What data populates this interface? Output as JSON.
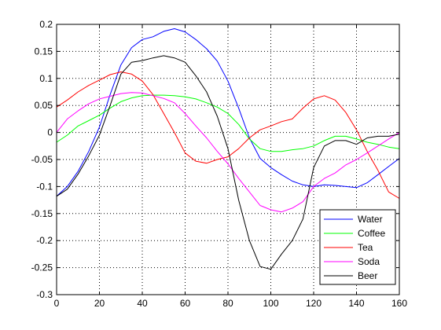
{
  "chart_data": {
    "type": "line",
    "title": "",
    "xlabel": "",
    "ylabel": "",
    "xlim": [
      0,
      160
    ],
    "ylim": [
      -0.3,
      0.2
    ],
    "xticks": [
      0,
      20,
      40,
      60,
      80,
      100,
      120,
      140,
      160
    ],
    "xtick_labels": [
      "0",
      "20",
      "40",
      "60",
      "80",
      "100",
      "120",
      "140",
      "160"
    ],
    "yticks": [
      -0.3,
      -0.25,
      -0.2,
      -0.15,
      -0.1,
      -0.05,
      0,
      0.05,
      0.1,
      0.15,
      0.2
    ],
    "ytick_labels": [
      "-0.3",
      "-0.25",
      "-0.2",
      "-0.15",
      "-0.1",
      "-0.05",
      "0",
      "0.05",
      "0.1",
      "0.15",
      "0.2"
    ],
    "grid": true,
    "legend_position": "bottom-right",
    "series": [
      {
        "name": "Water",
        "color": "#0000ff",
        "x": [
          0,
          5,
          10,
          15,
          20,
          25,
          30,
          35,
          40,
          45,
          50,
          55,
          60,
          65,
          70,
          75,
          80,
          85,
          90,
          95,
          100,
          105,
          110,
          115,
          120,
          125,
          130,
          135,
          140,
          145,
          150,
          155,
          160
        ],
        "y": [
          -0.118,
          -0.1,
          -0.072,
          -0.035,
          0.01,
          0.07,
          0.125,
          0.157,
          0.172,
          0.177,
          0.187,
          0.192,
          0.186,
          0.172,
          0.155,
          0.132,
          0.095,
          0.045,
          -0.01,
          -0.048,
          -0.065,
          -0.078,
          -0.09,
          -0.097,
          -0.1,
          -0.097,
          -0.098,
          -0.1,
          -0.102,
          -0.093,
          -0.078,
          -0.063,
          -0.048
        ]
      },
      {
        "name": "Coffee",
        "color": "#00ff00",
        "x": [
          0,
          5,
          10,
          15,
          20,
          25,
          30,
          35,
          40,
          45,
          50,
          55,
          60,
          65,
          70,
          75,
          80,
          85,
          90,
          95,
          100,
          105,
          110,
          115,
          120,
          125,
          130,
          135,
          140,
          145,
          150,
          155,
          160
        ],
        "y": [
          -0.018,
          -0.005,
          0.012,
          0.022,
          0.032,
          0.045,
          0.057,
          0.064,
          0.068,
          0.069,
          0.069,
          0.068,
          0.066,
          0.062,
          0.055,
          0.047,
          0.035,
          0.015,
          -0.012,
          -0.03,
          -0.035,
          -0.035,
          -0.032,
          -0.03,
          -0.025,
          -0.015,
          -0.007,
          -0.007,
          -0.012,
          -0.018,
          -0.022,
          -0.027,
          -0.03
        ]
      },
      {
        "name": "Tea",
        "color": "#ff0000",
        "x": [
          0,
          5,
          10,
          15,
          20,
          25,
          30,
          35,
          40,
          45,
          50,
          55,
          60,
          65,
          70,
          75,
          80,
          85,
          90,
          95,
          100,
          105,
          110,
          115,
          120,
          125,
          130,
          135,
          140,
          145,
          150,
          155,
          160
        ],
        "y": [
          0.047,
          0.06,
          0.075,
          0.087,
          0.097,
          0.107,
          0.112,
          0.108,
          0.095,
          0.07,
          0.035,
          0.0,
          -0.038,
          -0.053,
          -0.057,
          -0.05,
          -0.045,
          -0.03,
          -0.01,
          0.005,
          0.012,
          0.02,
          0.025,
          0.045,
          0.062,
          0.068,
          0.06,
          0.037,
          0.005,
          -0.035,
          -0.07,
          -0.11,
          -0.122
        ]
      },
      {
        "name": "Soda",
        "color": "#ff00ff",
        "x": [
          0,
          5,
          10,
          15,
          20,
          25,
          30,
          35,
          40,
          45,
          50,
          55,
          60,
          65,
          70,
          75,
          80,
          85,
          90,
          95,
          100,
          105,
          110,
          115,
          120,
          125,
          130,
          135,
          140,
          145,
          150,
          155,
          160
        ],
        "y": [
          0.0,
          0.025,
          0.04,
          0.053,
          0.062,
          0.067,
          0.072,
          0.074,
          0.073,
          0.068,
          0.063,
          0.055,
          0.035,
          0.012,
          -0.01,
          -0.035,
          -0.058,
          -0.085,
          -0.11,
          -0.135,
          -0.143,
          -0.147,
          -0.14,
          -0.128,
          -0.1,
          -0.085,
          -0.075,
          -0.06,
          -0.05,
          -0.038,
          -0.025,
          -0.012,
          0.0
        ]
      },
      {
        "name": "Beer",
        "color": "#000000",
        "x": [
          0,
          5,
          10,
          15,
          20,
          25,
          30,
          35,
          40,
          45,
          50,
          55,
          60,
          65,
          70,
          75,
          80,
          85,
          90,
          95,
          100,
          105,
          110,
          115,
          120,
          125,
          130,
          135,
          140,
          145,
          150,
          155,
          160
        ],
        "y": [
          -0.118,
          -0.105,
          -0.077,
          -0.043,
          -0.005,
          0.05,
          0.108,
          0.13,
          0.133,
          0.138,
          0.142,
          0.138,
          0.13,
          0.105,
          0.075,
          0.03,
          -0.03,
          -0.125,
          -0.2,
          -0.248,
          -0.253,
          -0.225,
          -0.2,
          -0.16,
          -0.065,
          -0.025,
          -0.015,
          -0.015,
          -0.022,
          -0.01,
          -0.007,
          -0.007,
          -0.003
        ]
      }
    ]
  }
}
